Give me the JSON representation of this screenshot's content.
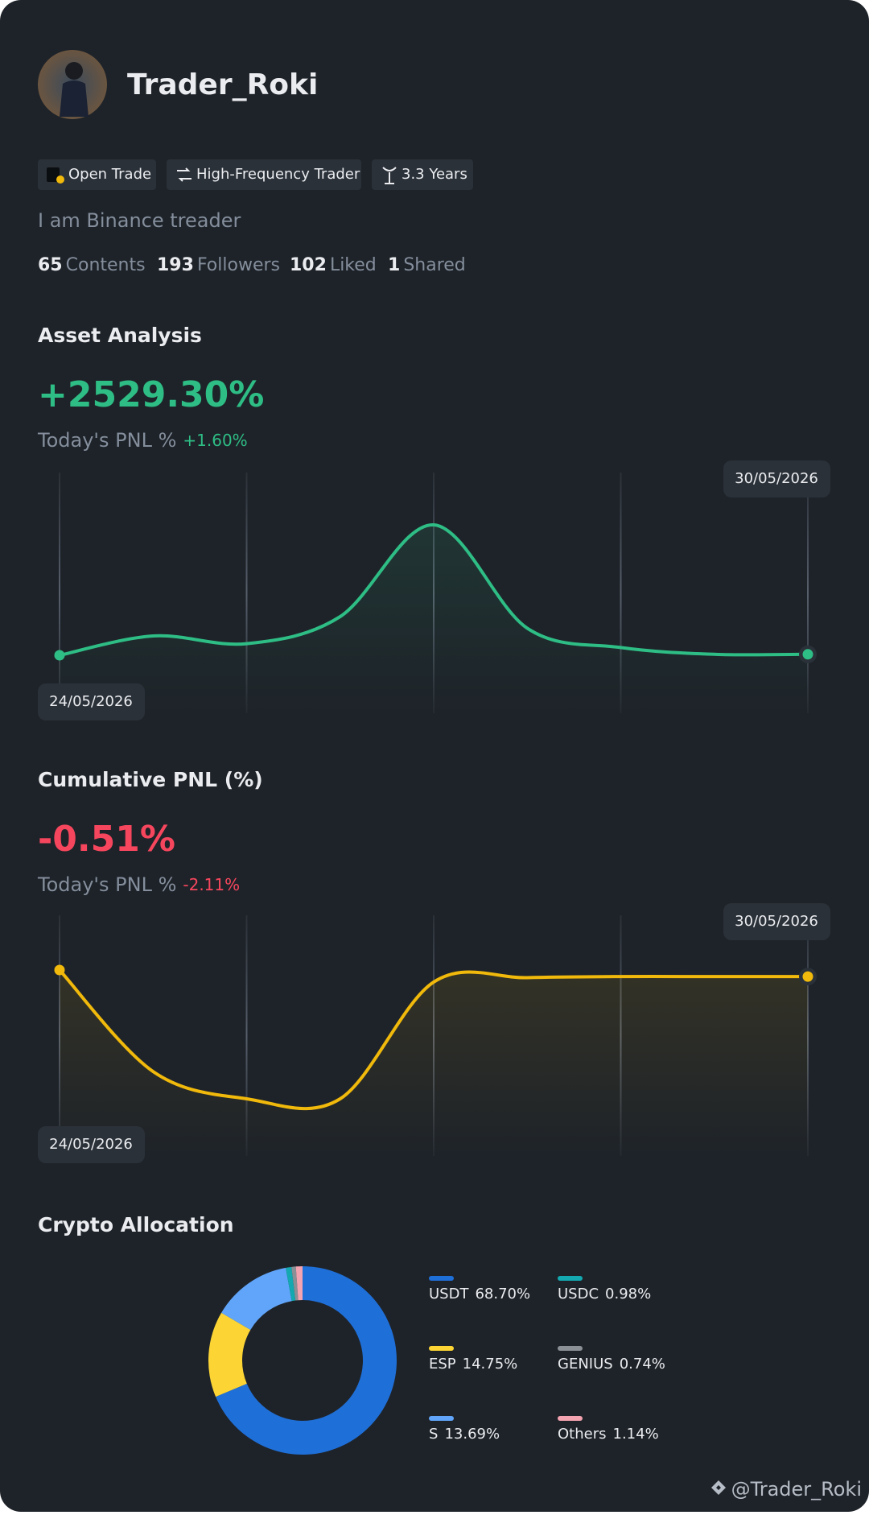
{
  "profile": {
    "name": "Trader_Roki",
    "tags": [
      "Open Trade",
      "High-Frequency Trader",
      "3.3 Years"
    ],
    "bio": "I am Binance treader",
    "stats": [
      {
        "value": "65",
        "label": "Contents"
      },
      {
        "value": "193",
        "label": "Followers"
      },
      {
        "value": "102",
        "label": "Liked"
      },
      {
        "value": "1",
        "label": "Shared"
      }
    ]
  },
  "asset_analysis": {
    "title": "Asset Analysis",
    "value": "+2529.30%",
    "today_label": "Today's PNL %",
    "today_value": "+1.60%",
    "chart": {
      "type": "line",
      "color": "#2ebd85",
      "start_label": "24/05/2026",
      "end_label": "30/05/2026",
      "values": [
        0,
        20,
        12,
        40,
        135,
        28,
        8,
        1,
        1
      ]
    }
  },
  "cumulative_pnl": {
    "title": "Cumulative PNL (%)",
    "value": "-0.51%",
    "today_label": "Today's PNL %",
    "today_value": "-2.11%",
    "chart": {
      "type": "line",
      "color": "#f0b90b",
      "start_label": "24/05/2026",
      "end_label": "30/05/2026",
      "values": [
        0,
        -93,
        -118,
        -118,
        -11,
        -7,
        -6,
        -6,
        -6
      ]
    }
  },
  "allocation": {
    "title": "Crypto Allocation",
    "chart": {
      "type": "pie",
      "categories": [
        "USDT",
        "ESP",
        "S",
        "USDC",
        "GENIUS",
        "Others"
      ],
      "values": [
        68.7,
        14.75,
        13.69,
        0.98,
        0.74,
        1.14
      ],
      "value_labels": [
        "68.70%",
        "14.75%",
        "13.69%",
        "0.98%",
        "0.74%",
        "1.14%"
      ],
      "colors": [
        "#1f6fd8",
        "#fcd535",
        "#60a5fa",
        "#14a8b0",
        "#8b8f96",
        "#f4a3b0"
      ]
    }
  },
  "watermark": "@Trader_Roki"
}
